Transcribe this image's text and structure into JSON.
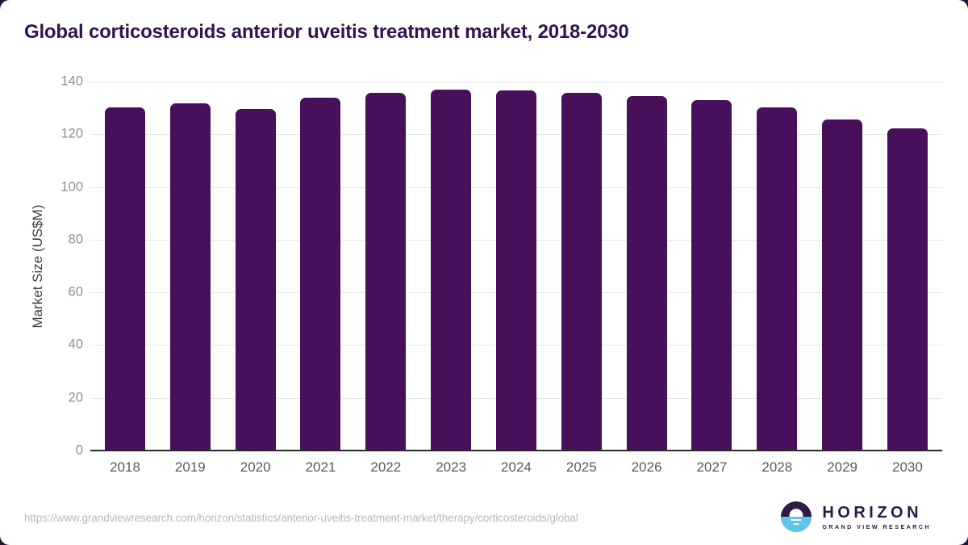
{
  "title": "Global corticosteroids anterior uveitis treatment market, 2018-2030",
  "chart_data": {
    "type": "bar",
    "categories": [
      "2018",
      "2019",
      "2020",
      "2021",
      "2022",
      "2023",
      "2024",
      "2025",
      "2026",
      "2027",
      "2028",
      "2029",
      "2030"
    ],
    "values": [
      130.2,
      131.6,
      129.6,
      133.9,
      135.6,
      137.0,
      136.6,
      135.6,
      134.5,
      132.9,
      130.1,
      125.5,
      122.1
    ],
    "title": "Global corticosteroids anterior uveitis treatment market, 2018-2030",
    "xlabel": "",
    "ylabel": "Market Size (US$M)",
    "ylim": [
      0,
      140
    ],
    "yticks": [
      0,
      20,
      40,
      60,
      80,
      100,
      120,
      140
    ],
    "grid": true,
    "legend": false
  },
  "colors": {
    "bar": "#48105a",
    "title_text": "#33134f",
    "gridline": "#e7e7e7",
    "axis_line": "#2b2b2b",
    "logo_purple": "#2e1a47",
    "logo_blue": "#5fc4ea"
  },
  "footer": {
    "source_url": "https://www.grandviewresearch.com/horizon/statistics/anterior-uveitis-treatment-market/therapy/corticosteroids/global"
  },
  "logo": {
    "brand": "HORIZON",
    "tagline": "GRAND VIEW RESEARCH"
  }
}
